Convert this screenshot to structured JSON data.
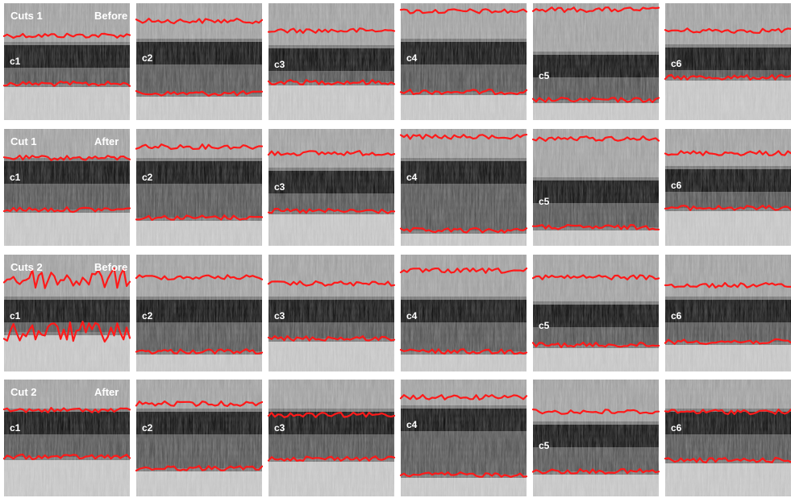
{
  "figure": {
    "background": "#ffffff",
    "trace_color": "#ff1a1a",
    "rows": [
      {
        "title": "Cuts 1",
        "state": "Before",
        "cuts": [
          "c1",
          "c2",
          "c3",
          "c4",
          "c5",
          "c6"
        ]
      },
      {
        "title": "Cut 1",
        "state": "After",
        "cuts": [
          "c1",
          "c2",
          "c3",
          "c4",
          "c5",
          "c6"
        ]
      },
      {
        "title": "Cuts 2",
        "state": "Before",
        "cuts": [
          "c1",
          "c2",
          "c3",
          "c4",
          "c5",
          "c6"
        ]
      },
      {
        "title": "Cut 2",
        "state": "After",
        "cuts": [
          "c1",
          "c2",
          "c3",
          "c4",
          "c5",
          "c6"
        ]
      }
    ]
  }
}
